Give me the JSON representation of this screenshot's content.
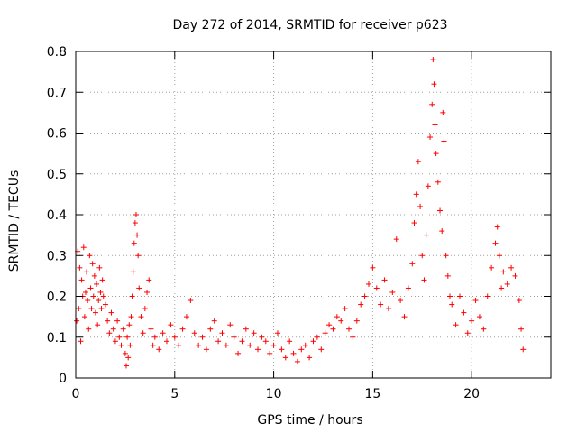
{
  "chart_data": {
    "type": "scatter",
    "title": "Day 272 of 2014, SRMTID for receiver p623",
    "xlabel": "GPS time / hours",
    "ylabel": "SRMTID / TECUs",
    "xlim": [
      0,
      24
    ],
    "ylim": [
      0,
      0.8
    ],
    "x_ticks": [
      "0",
      "5",
      "10",
      "15",
      "20"
    ],
    "y_ticks": [
      "0",
      "0.1",
      "0.2",
      "0.3",
      "0.4",
      "0.5",
      "0.6",
      "0.7",
      "0.8"
    ],
    "grid": true,
    "marker": "plus",
    "series_color": "#ff0000",
    "series": [
      {
        "name": "SRMTID",
        "points": [
          [
            0.05,
            0.14
          ],
          [
            0.1,
            0.31
          ],
          [
            0.15,
            0.17
          ],
          [
            0.2,
            0.27
          ],
          [
            0.25,
            0.09
          ],
          [
            0.3,
            0.24
          ],
          [
            0.35,
            0.2
          ],
          [
            0.4,
            0.32
          ],
          [
            0.45,
            0.15
          ],
          [
            0.5,
            0.21
          ],
          [
            0.55,
            0.26
          ],
          [
            0.6,
            0.19
          ],
          [
            0.65,
            0.12
          ],
          [
            0.7,
            0.3
          ],
          [
            0.75,
            0.22
          ],
          [
            0.8,
            0.17
          ],
          [
            0.85,
            0.28
          ],
          [
            0.9,
            0.2
          ],
          [
            0.95,
            0.25
          ],
          [
            1.0,
            0.16
          ],
          [
            1.05,
            0.23
          ],
          [
            1.1,
            0.13
          ],
          [
            1.15,
            0.19
          ],
          [
            1.2,
            0.27
          ],
          [
            1.25,
            0.21
          ],
          [
            1.3,
            0.17
          ],
          [
            1.35,
            0.24
          ],
          [
            1.4,
            0.2
          ],
          [
            1.5,
            0.18
          ],
          [
            1.6,
            0.14
          ],
          [
            1.7,
            0.11
          ],
          [
            1.8,
            0.16
          ],
          [
            1.9,
            0.12
          ],
          [
            2.0,
            0.09
          ],
          [
            2.1,
            0.14
          ],
          [
            2.2,
            0.1
          ],
          [
            2.3,
            0.08
          ],
          [
            2.4,
            0.12
          ],
          [
            2.5,
            0.06
          ],
          [
            2.55,
            0.03
          ],
          [
            2.6,
            0.1
          ],
          [
            2.65,
            0.05
          ],
          [
            2.7,
            0.13
          ],
          [
            2.75,
            0.08
          ],
          [
            2.8,
            0.15
          ],
          [
            2.85,
            0.2
          ],
          [
            2.9,
            0.26
          ],
          [
            2.95,
            0.33
          ],
          [
            3.0,
            0.38
          ],
          [
            3.05,
            0.4
          ],
          [
            3.1,
            0.35
          ],
          [
            3.15,
            0.3
          ],
          [
            3.2,
            0.22
          ],
          [
            3.3,
            0.15
          ],
          [
            3.4,
            0.11
          ],
          [
            3.5,
            0.17
          ],
          [
            3.6,
            0.21
          ],
          [
            3.7,
            0.24
          ],
          [
            3.8,
            0.12
          ],
          [
            3.9,
            0.08
          ],
          [
            4.0,
            0.1
          ],
          [
            4.2,
            0.07
          ],
          [
            4.4,
            0.11
          ],
          [
            4.6,
            0.09
          ],
          [
            4.8,
            0.13
          ],
          [
            5.0,
            0.1
          ],
          [
            5.2,
            0.08
          ],
          [
            5.4,
            0.12
          ],
          [
            5.6,
            0.15
          ],
          [
            5.8,
            0.19
          ],
          [
            6.0,
            0.11
          ],
          [
            6.2,
            0.08
          ],
          [
            6.4,
            0.1
          ],
          [
            6.6,
            0.07
          ],
          [
            6.8,
            0.12
          ],
          [
            7.0,
            0.14
          ],
          [
            7.2,
            0.09
          ],
          [
            7.4,
            0.11
          ],
          [
            7.6,
            0.08
          ],
          [
            7.8,
            0.13
          ],
          [
            8.0,
            0.1
          ],
          [
            8.2,
            0.06
          ],
          [
            8.4,
            0.09
          ],
          [
            8.6,
            0.12
          ],
          [
            8.8,
            0.08
          ],
          [
            9.0,
            0.11
          ],
          [
            9.2,
            0.07
          ],
          [
            9.4,
            0.1
          ],
          [
            9.6,
            0.09
          ],
          [
            9.8,
            0.06
          ],
          [
            10.0,
            0.08
          ],
          [
            10.2,
            0.11
          ],
          [
            10.4,
            0.07
          ],
          [
            10.6,
            0.05
          ],
          [
            10.8,
            0.09
          ],
          [
            11.0,
            0.06
          ],
          [
            11.2,
            0.04
          ],
          [
            11.4,
            0.07
          ],
          [
            11.6,
            0.08
          ],
          [
            11.8,
            0.05
          ],
          [
            12.0,
            0.09
          ],
          [
            12.2,
            0.1
          ],
          [
            12.4,
            0.07
          ],
          [
            12.6,
            0.11
          ],
          [
            12.8,
            0.13
          ],
          [
            13.0,
            0.12
          ],
          [
            13.2,
            0.15
          ],
          [
            13.4,
            0.14
          ],
          [
            13.6,
            0.17
          ],
          [
            13.8,
            0.12
          ],
          [
            14.0,
            0.1
          ],
          [
            14.2,
            0.14
          ],
          [
            14.4,
            0.18
          ],
          [
            14.6,
            0.2
          ],
          [
            14.8,
            0.23
          ],
          [
            15.0,
            0.27
          ],
          [
            15.2,
            0.22
          ],
          [
            15.4,
            0.18
          ],
          [
            15.6,
            0.24
          ],
          [
            15.8,
            0.17
          ],
          [
            16.0,
            0.21
          ],
          [
            16.2,
            0.34
          ],
          [
            16.4,
            0.19
          ],
          [
            16.6,
            0.15
          ],
          [
            16.8,
            0.22
          ],
          [
            17.0,
            0.28
          ],
          [
            17.1,
            0.38
          ],
          [
            17.2,
            0.45
          ],
          [
            17.3,
            0.53
          ],
          [
            17.4,
            0.42
          ],
          [
            17.5,
            0.3
          ],
          [
            17.6,
            0.24
          ],
          [
            17.7,
            0.35
          ],
          [
            17.8,
            0.47
          ],
          [
            17.9,
            0.59
          ],
          [
            18.0,
            0.67
          ],
          [
            18.05,
            0.78
          ],
          [
            18.1,
            0.72
          ],
          [
            18.15,
            0.62
          ],
          [
            18.2,
            0.55
          ],
          [
            18.3,
            0.48
          ],
          [
            18.4,
            0.41
          ],
          [
            18.5,
            0.36
          ],
          [
            18.55,
            0.65
          ],
          [
            18.6,
            0.58
          ],
          [
            18.7,
            0.3
          ],
          [
            18.8,
            0.25
          ],
          [
            18.9,
            0.2
          ],
          [
            19.0,
            0.18
          ],
          [
            19.2,
            0.13
          ],
          [
            19.4,
            0.2
          ],
          [
            19.6,
            0.16
          ],
          [
            19.8,
            0.11
          ],
          [
            20.0,
            0.14
          ],
          [
            20.2,
            0.19
          ],
          [
            20.4,
            0.15
          ],
          [
            20.6,
            0.12
          ],
          [
            20.8,
            0.2
          ],
          [
            21.0,
            0.27
          ],
          [
            21.2,
            0.33
          ],
          [
            21.3,
            0.37
          ],
          [
            21.4,
            0.3
          ],
          [
            21.5,
            0.22
          ],
          [
            21.6,
            0.26
          ],
          [
            21.8,
            0.23
          ],
          [
            22.0,
            0.27
          ],
          [
            22.2,
            0.25
          ],
          [
            22.4,
            0.19
          ],
          [
            22.5,
            0.12
          ],
          [
            22.6,
            0.07
          ]
        ]
      }
    ]
  }
}
